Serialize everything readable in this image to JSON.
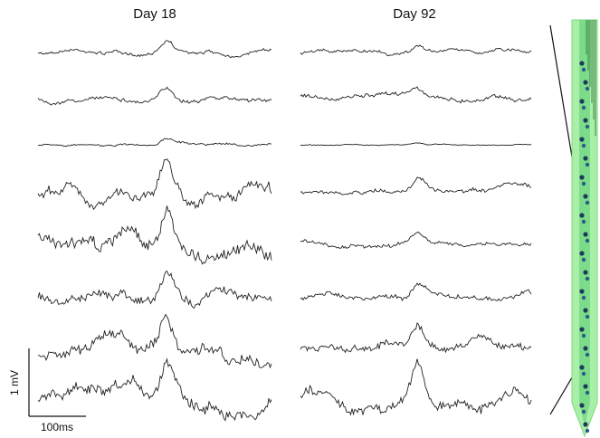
{
  "panels": [
    {
      "title": "Day 18"
    },
    {
      "title": "Day 92"
    }
  ],
  "scale_bar": {
    "vertical": "1 mV",
    "horizontal": "100ms"
  }
}
